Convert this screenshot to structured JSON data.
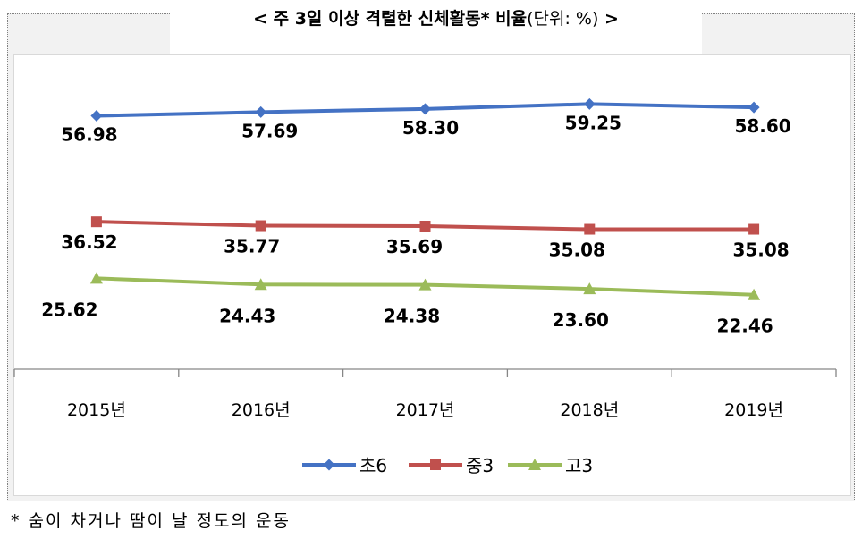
{
  "title": {
    "prefix": "<",
    "main": "주 3일 이상 격렬한 신체활동",
    "asterisk": "*",
    "rate": "비율",
    "unit": "(단위: %)",
    "suffix": ">"
  },
  "footnote": "* 숨이 차거나 땀이 날 정도의 운동",
  "chart_data": {
    "type": "line",
    "categories": [
      "2015년",
      "2016년",
      "2017년",
      "2018년",
      "2019년"
    ],
    "series": [
      {
        "name": "초6",
        "values": [
          56.98,
          57.69,
          58.3,
          59.25,
          58.6
        ],
        "labels": [
          "56.98",
          "57.69",
          "58.30",
          "59.25",
          "58.60"
        ],
        "color": "#4472c4",
        "marker": "diamond"
      },
      {
        "name": "중3",
        "values": [
          36.52,
          35.77,
          35.69,
          35.08,
          35.08
        ],
        "labels": [
          "36.52",
          "35.77",
          "35.69",
          "35.08",
          "35.08"
        ],
        "color": "#c0504d",
        "marker": "square"
      },
      {
        "name": "고3",
        "values": [
          25.62,
          24.43,
          24.38,
          23.6,
          22.46
        ],
        "labels": [
          "25.62",
          "24.43",
          "24.38",
          "23.60",
          "22.46"
        ],
        "color": "#9bbb59",
        "marker": "triangle"
      }
    ],
    "ylim": [
      0,
      70
    ],
    "grid": false,
    "legend": "bottom"
  }
}
